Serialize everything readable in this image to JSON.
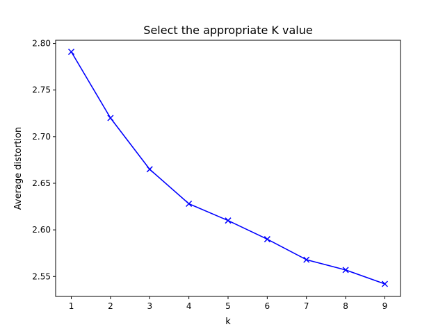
{
  "chart_data": {
    "type": "line",
    "title": "Select the appropriate K value",
    "xlabel": "k",
    "ylabel": "Average distortion",
    "x": [
      1,
      2,
      3,
      4,
      5,
      6,
      7,
      8,
      9
    ],
    "series": [
      {
        "values": [
          2.791,
          2.72,
          2.665,
          2.628,
          2.61,
          2.59,
          2.568,
          2.557,
          2.542
        ],
        "color": "#0000ff",
        "marker": "x"
      }
    ],
    "xticks": [
      "1",
      "2",
      "3",
      "4",
      "5",
      "6",
      "7",
      "8",
      "9"
    ],
    "yticks": [
      "2.55",
      "2.60",
      "2.65",
      "2.70",
      "2.75",
      "2.80"
    ],
    "xlim": [
      0.6,
      9.4
    ],
    "ylim": [
      2.5286,
      2.8034
    ],
    "grid": false,
    "legend": "none"
  }
}
